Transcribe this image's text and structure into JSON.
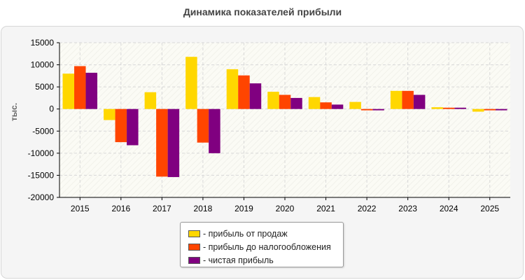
{
  "title": "Динамика показателей прибыли",
  "chart_data": {
    "type": "bar",
    "title": "Динамика показателей прибыли",
    "xlabel": "",
    "ylabel": "тыс.",
    "ylim": [
      -20000,
      15000
    ],
    "yticks": [
      15000,
      10000,
      5000,
      0,
      -5000,
      -10000,
      -15000,
      -20000
    ],
    "categories": [
      "2015",
      "2016",
      "2017",
      "2018",
      "2019",
      "2020",
      "2021",
      "2022",
      "2023",
      "2024",
      "2025"
    ],
    "grid": true,
    "legend_position": "bottom-center",
    "series": [
      {
        "name": "- прибыль от продаж",
        "color": "#ffd700",
        "values": [
          8000,
          -2500,
          3800,
          11800,
          9000,
          3900,
          2700,
          1600,
          4100,
          400,
          -600
        ]
      },
      {
        "name": "- прибыль до налогообложения",
        "color": "#ff4500",
        "values": [
          9700,
          -7500,
          -15300,
          -7600,
          7600,
          3200,
          1500,
          -300,
          4100,
          300,
          -300
        ]
      },
      {
        "name": "- чистая прибыль",
        "color": "#800080",
        "values": [
          8200,
          -8200,
          -15400,
          -10000,
          5800,
          2500,
          1000,
          -300,
          3200,
          300,
          -300
        ]
      }
    ]
  }
}
